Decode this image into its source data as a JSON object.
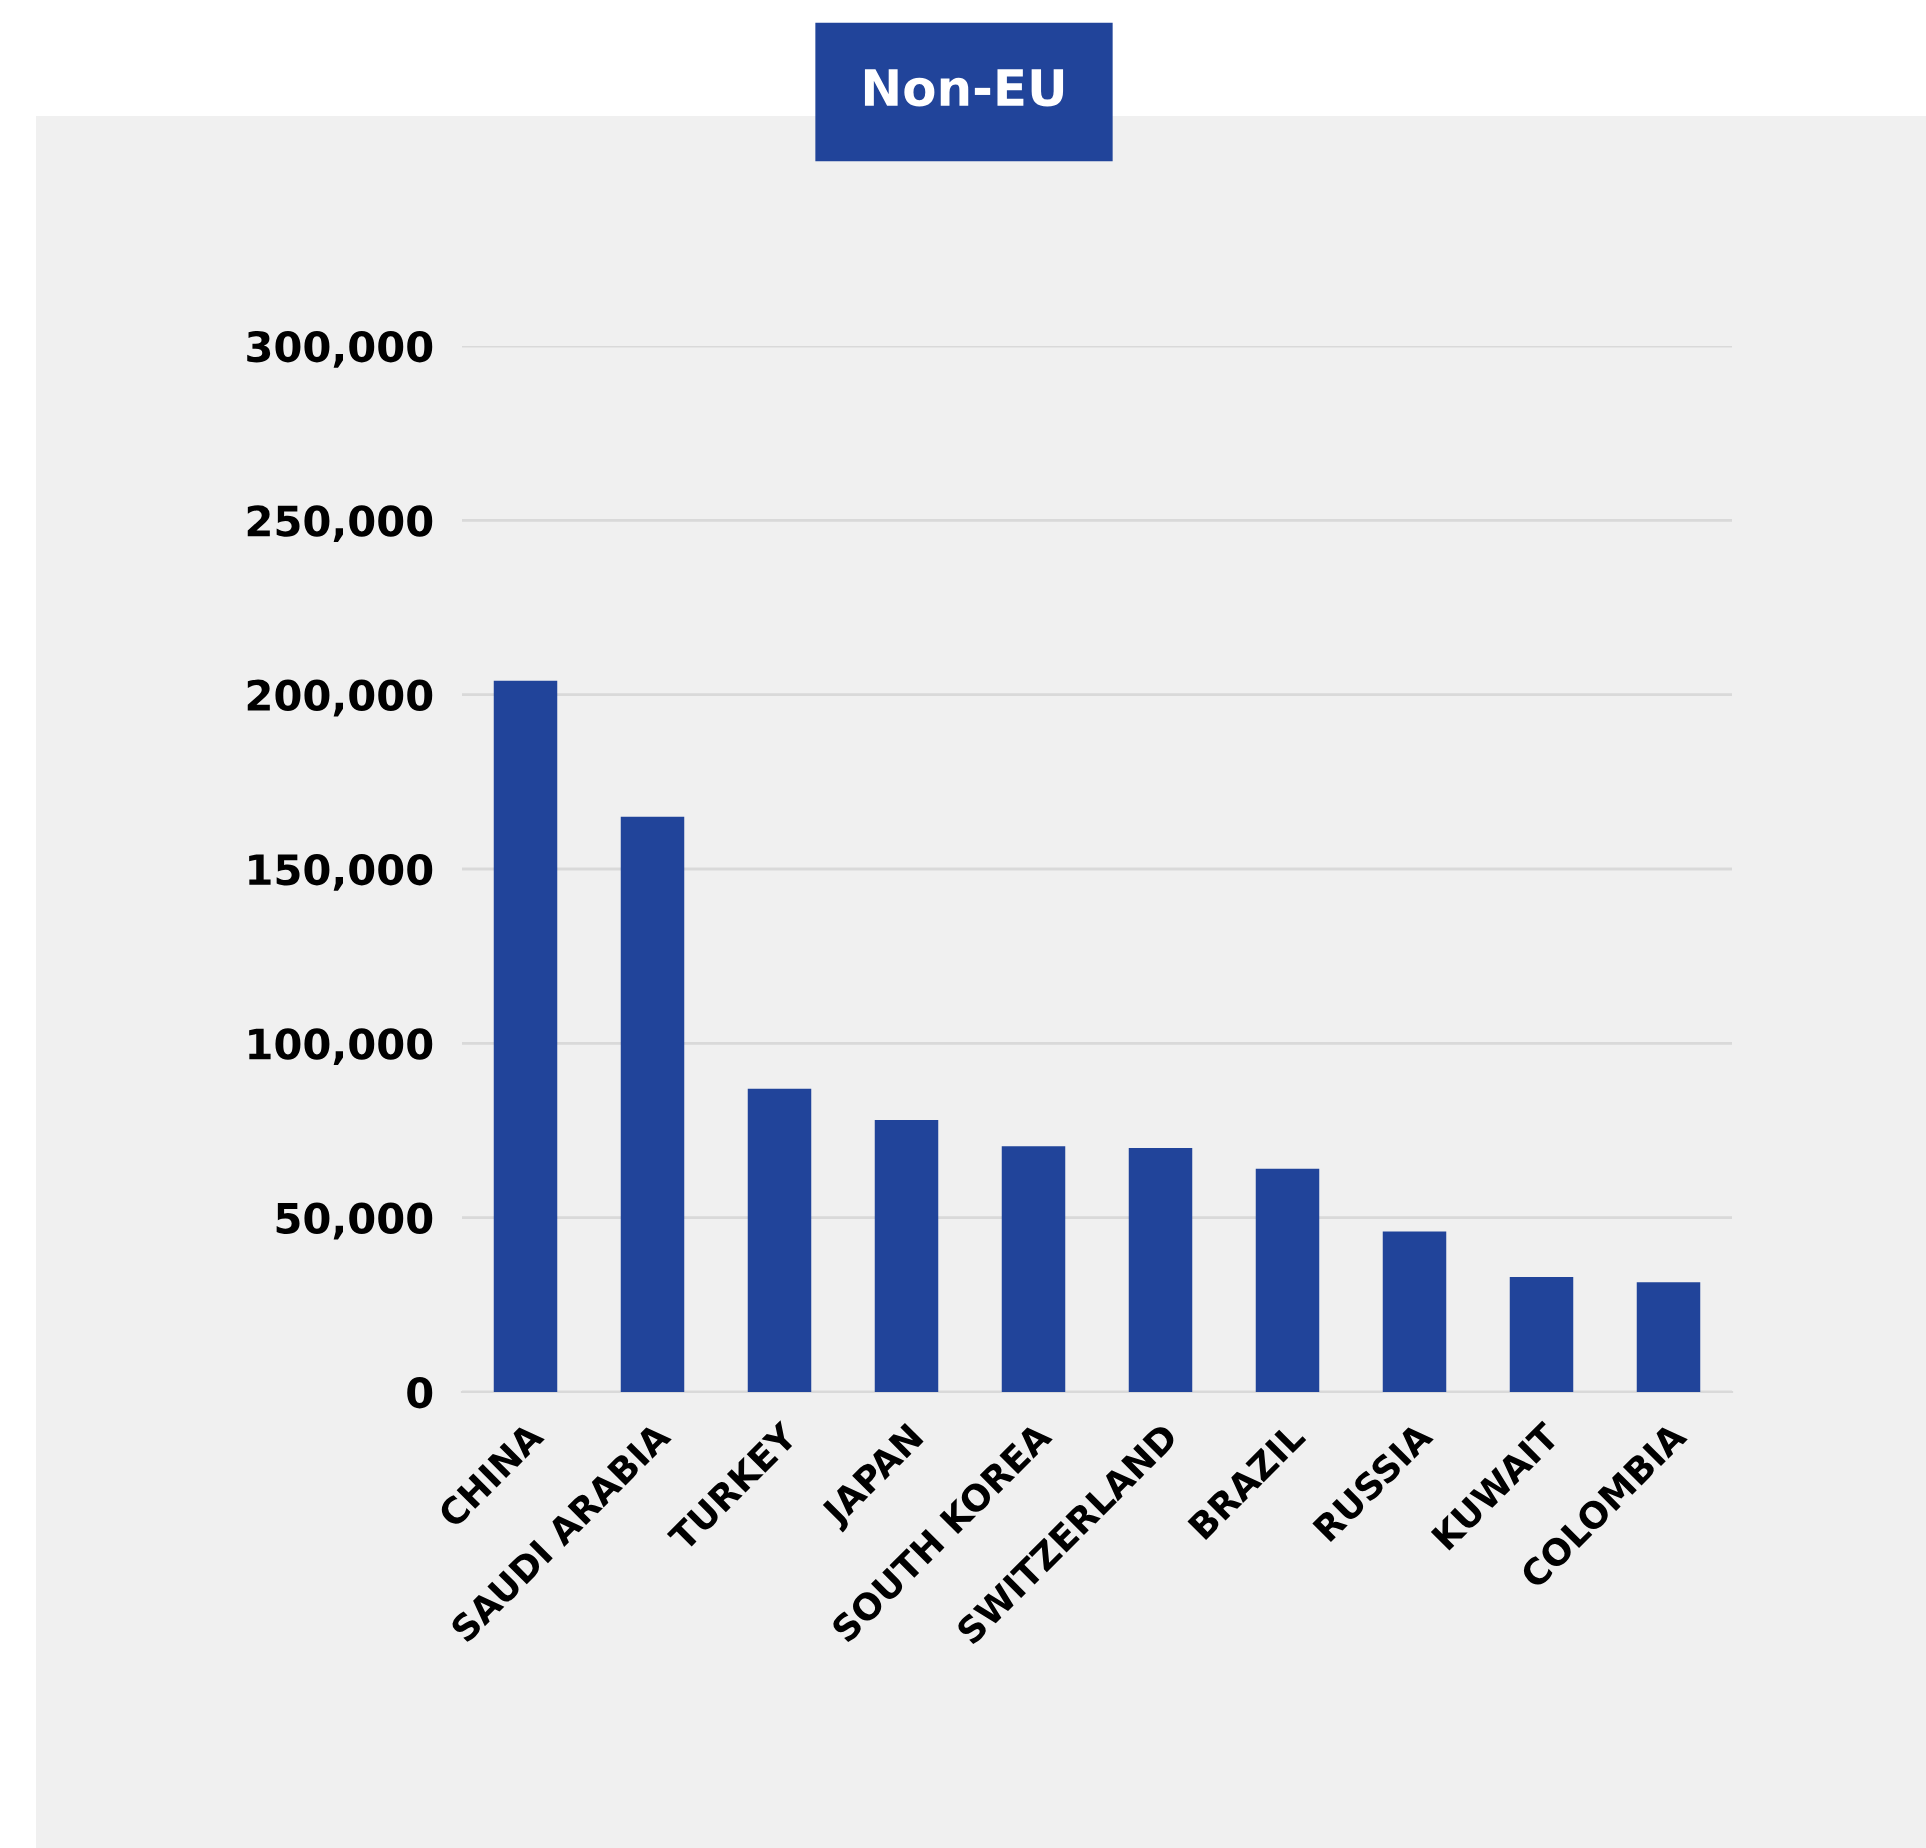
{
  "chart_data": {
    "type": "bar",
    "title": "Non-EU",
    "categories": [
      "CHINA",
      "SAUDI ARABIA",
      "TURKEY",
      "JAPAN",
      "SOUTH KOREA",
      "SWITZERLAND",
      "BRAZIL",
      "RUSSIA",
      "KUWAIT",
      "COLOMBIA"
    ],
    "values": [
      204000,
      165000,
      87000,
      78000,
      70500,
      70000,
      64000,
      46000,
      33000,
      31500
    ],
    "color": "#21449a",
    "ylim": [
      0,
      300000
    ],
    "yticks": [
      {
        "value": 0,
        "label": "0"
      },
      {
        "value": 50000,
        "label": "50,000"
      },
      {
        "value": 100000,
        "label": "100,000"
      },
      {
        "value": 150000,
        "label": "150,000"
      },
      {
        "value": 200000,
        "label": "200,000"
      },
      {
        "value": 250000,
        "label": "250,000"
      },
      {
        "value": 300000,
        "label": "300,000"
      }
    ],
    "grid": "y",
    "legend": false
  }
}
